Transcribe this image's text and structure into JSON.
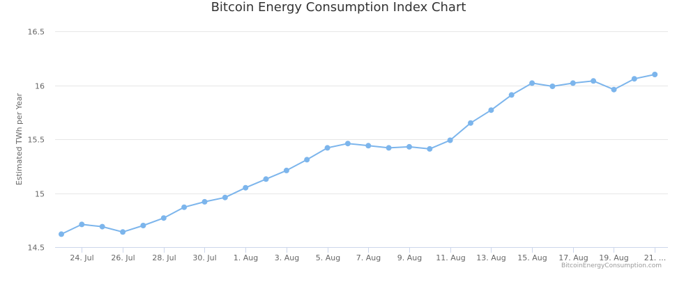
{
  "chart_data": {
    "type": "line",
    "title": "Bitcoin Energy Consumption Index Chart",
    "ylabel": "Estimated TWh per Year",
    "xlabel": "",
    "ylim": [
      14.5,
      16.5
    ],
    "yticks": [
      "14.5",
      "15",
      "15.5",
      "16",
      "16.5"
    ],
    "x": [
      "2017-07-23",
      "2017-07-24",
      "2017-07-25",
      "2017-07-26",
      "2017-07-27",
      "2017-07-28",
      "2017-07-29",
      "2017-07-30",
      "2017-07-31",
      "2017-08-01",
      "2017-08-02",
      "2017-08-03",
      "2017-08-04",
      "2017-08-05",
      "2017-08-06",
      "2017-08-07",
      "2017-08-08",
      "2017-08-09",
      "2017-08-10",
      "2017-08-11",
      "2017-08-12",
      "2017-08-13",
      "2017-08-14",
      "2017-08-15",
      "2017-08-16",
      "2017-08-17",
      "2017-08-18",
      "2017-08-19",
      "2017-08-20",
      "2017-08-21"
    ],
    "series": [
      {
        "color": "#7cb5ec",
        "values": [
          14.62,
          14.71,
          14.69,
          14.64,
          14.7,
          14.77,
          14.87,
          14.92,
          14.96,
          15.05,
          15.13,
          15.21,
          15.31,
          15.42,
          15.46,
          15.44,
          15.42,
          15.43,
          15.41,
          15.49,
          15.65,
          15.77,
          15.91,
          16.02,
          15.99,
          16.02,
          16.04,
          15.96,
          16.06,
          16.1
        ]
      }
    ],
    "xtick_labels": [
      "24. Jul",
      "26. Jul",
      "28. Jul",
      "30. Jul",
      "1. Aug",
      "3. Aug",
      "5. Aug",
      "7. Aug",
      "9. Aug",
      "11. Aug",
      "13. Aug",
      "15. Aug",
      "17. Aug",
      "19. Aug",
      "21. ..."
    ],
    "grid": true,
    "legend": "none",
    "credit": "BitcoinEnergyConsumption.com"
  }
}
